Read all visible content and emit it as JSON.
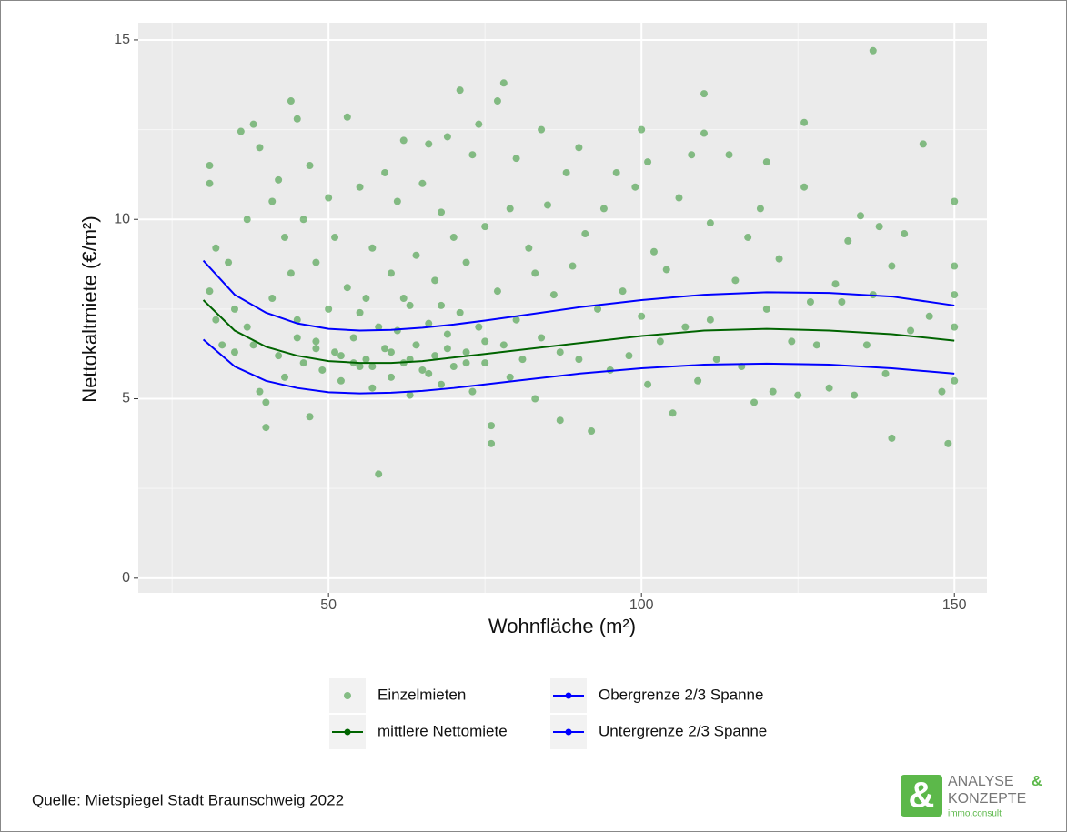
{
  "chart_data": {
    "type": "scatter",
    "xlabel": "Wohnfläche (m²)",
    "ylabel": "Nettokaltmiete (€/m²)",
    "xlim": [
      19.6,
      155.2
    ],
    "ylim": [
      -0.41,
      15.48
    ],
    "xticks": [
      50,
      100,
      150
    ],
    "yticks": [
      0,
      5,
      10,
      15
    ],
    "xminor": [
      25,
      75,
      125
    ],
    "yminor": [
      2.5,
      7.5,
      12.5
    ],
    "grid": true,
    "legend": "bottom",
    "x": [
      30,
      35,
      40,
      45,
      50,
      55,
      60,
      65,
      70,
      75,
      80,
      90,
      100,
      110,
      120,
      130,
      140,
      150
    ],
    "series": [
      {
        "name": "Einzelmieten",
        "type": "scatter",
        "color": "#3c9a3c",
        "x": [
          31,
          31,
          32,
          31,
          32,
          33,
          34,
          35,
          35,
          36,
          37,
          37,
          38,
          38,
          39,
          39,
          40,
          40,
          41,
          41,
          42,
          42,
          43,
          43,
          44,
          44,
          45,
          45,
          46,
          46,
          47,
          47,
          48,
          48,
          49,
          50,
          50,
          51,
          51,
          52,
          53,
          53,
          54,
          55,
          55,
          56,
          56,
          57,
          57,
          58,
          58,
          59,
          59,
          60,
          60,
          61,
          61,
          62,
          62,
          63,
          63,
          64,
          64,
          65,
          65,
          66,
          66,
          67,
          67,
          68,
          68,
          69,
          69,
          70,
          70,
          71,
          71,
          72,
          72,
          73,
          73,
          74,
          74,
          75,
          75,
          76,
          76,
          77,
          77,
          78,
          78,
          79,
          79,
          80,
          80,
          81,
          82,
          83,
          83,
          84,
          84,
          85,
          86,
          87,
          87,
          88,
          89,
          90,
          90,
          91,
          92,
          93,
          94,
          95,
          96,
          97,
          98,
          99,
          100,
          100,
          101,
          101,
          102,
          103,
          104,
          105,
          106,
          107,
          108,
          109,
          110,
          110,
          111,
          111,
          112,
          114,
          115,
          116,
          117,
          118,
          119,
          120,
          120,
          121,
          122,
          124,
          125,
          126,
          126,
          127,
          128,
          130,
          131,
          132,
          133,
          134,
          135,
          136,
          137,
          137,
          138,
          139,
          140,
          140,
          142,
          143,
          145,
          146,
          148,
          149,
          150,
          150,
          150,
          150,
          150,
          52,
          54,
          57,
          60,
          63,
          66,
          69,
          72,
          75,
          55,
          62,
          68,
          48,
          45
        ],
        "values": [
          11.5,
          11.0,
          9.2,
          8.0,
          7.2,
          6.5,
          8.8,
          7.5,
          6.3,
          12.45,
          10.0,
          7.0,
          12.65,
          6.5,
          12.0,
          5.2,
          4.9,
          4.2,
          10.5,
          7.8,
          6.2,
          11.1,
          9.5,
          5.6,
          13.3,
          8.5,
          12.8,
          7.2,
          6.0,
          10.0,
          4.5,
          11.5,
          8.8,
          6.6,
          5.8,
          10.6,
          7.5,
          9.5,
          6.3,
          5.5,
          12.85,
          8.1,
          6.7,
          10.9,
          5.9,
          7.8,
          6.1,
          9.2,
          5.3,
          2.9,
          7.0,
          11.3,
          6.4,
          8.5,
          5.6,
          10.5,
          6.9,
          12.2,
          6.0,
          7.6,
          5.1,
          9.0,
          6.5,
          11.0,
          5.8,
          12.1,
          7.1,
          8.3,
          6.2,
          10.2,
          5.4,
          12.3,
          6.8,
          9.5,
          5.9,
          13.6,
          7.4,
          8.8,
          6.3,
          11.8,
          5.2,
          12.65,
          7.0,
          9.8,
          6.0,
          3.75,
          4.25,
          13.3,
          8.0,
          13.8,
          6.5,
          10.3,
          5.6,
          11.7,
          7.2,
          6.1,
          9.2,
          8.5,
          5.0,
          12.5,
          6.7,
          10.4,
          7.9,
          4.4,
          6.3,
          11.3,
          8.7,
          12.0,
          6.1,
          9.6,
          4.1,
          7.5,
          10.3,
          5.8,
          11.3,
          8.0,
          6.2,
          10.9,
          12.5,
          7.3,
          11.6,
          5.4,
          9.1,
          6.6,
          8.6,
          4.6,
          10.6,
          7.0,
          11.8,
          5.5,
          13.5,
          12.4,
          9.9,
          7.2,
          6.1,
          11.8,
          8.3,
          5.9,
          9.5,
          4.9,
          10.3,
          11.6,
          7.5,
          5.2,
          8.9,
          6.6,
          5.1,
          12.7,
          10.9,
          7.7,
          6.5,
          5.3,
          8.2,
          7.7,
          9.4,
          5.1,
          10.1,
          6.5,
          14.7,
          7.9,
          9.8,
          5.7,
          3.9,
          8.7,
          9.6,
          6.9,
          12.1,
          7.3,
          5.2,
          3.75,
          10.5,
          8.7,
          7.9,
          7.0,
          5.5,
          6.2,
          6.0,
          5.9,
          6.3,
          6.1,
          5.7,
          6.4,
          6.0,
          6.6,
          7.4,
          7.8,
          7.6,
          6.4,
          6.7
        ]
      },
      {
        "name": "mittlere Nettomiete",
        "type": "line",
        "color": "#006400",
        "values": [
          7.75,
          6.9,
          6.45,
          6.2,
          6.05,
          6.0,
          6.0,
          6.05,
          6.15,
          6.25,
          6.35,
          6.55,
          6.75,
          6.9,
          6.95,
          6.9,
          6.8,
          6.62
        ]
      },
      {
        "name": "Obergrenze 2/3 Spanne",
        "type": "line",
        "color": "#0000ff",
        "values": [
          8.85,
          7.9,
          7.4,
          7.1,
          6.95,
          6.9,
          6.92,
          6.98,
          7.07,
          7.18,
          7.3,
          7.55,
          7.75,
          7.9,
          7.97,
          7.95,
          7.85,
          7.6
        ]
      },
      {
        "name": "Untergrenze 2/3 Spanne",
        "type": "line",
        "color": "#0000ff",
        "values": [
          6.65,
          5.9,
          5.5,
          5.3,
          5.18,
          5.15,
          5.17,
          5.22,
          5.3,
          5.4,
          5.5,
          5.7,
          5.85,
          5.95,
          5.98,
          5.95,
          5.85,
          5.7
        ]
      }
    ],
    "source": "Quelle: Mietspiegel Stadt Braunschweig 2022",
    "logo": {
      "symbol": "&",
      "line1": "ANALYSE",
      "amp": "&",
      "line2": "KONZEPTE",
      "line3": "immo.consult"
    }
  }
}
